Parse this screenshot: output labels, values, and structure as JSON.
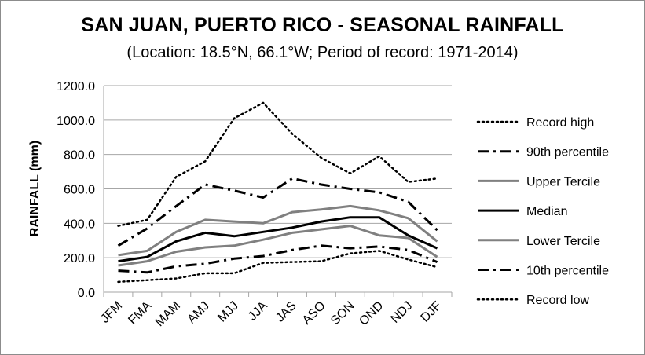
{
  "chart_data": {
    "type": "line",
    "title": "SAN JUAN, PUERTO RICO - SEASONAL RAINFALL",
    "subtitle": "(Location: 18.5°N, 66.1°W; Period of record: 1971-2014)",
    "ylabel": "RAINFALL (mm)",
    "xlabel": "",
    "ylim": [
      0,
      1200
    ],
    "yticks": [
      "0.0",
      "200.0",
      "400.0",
      "600.0",
      "800.0",
      "1000.0",
      "1200.0"
    ],
    "grid": "horizontal",
    "legend": "right",
    "categories": [
      "JFM",
      "FMA",
      "MAM",
      "AMJ",
      "MJJ",
      "JJA",
      "JAS",
      "ASO",
      "SON",
      "OND",
      "NDJ",
      "DJF"
    ],
    "series": [
      {
        "name": "Record high",
        "color": "#000000",
        "style": "dotted",
        "values": [
          385,
          420,
          670,
          760,
          1010,
          1100,
          920,
          780,
          690,
          790,
          640,
          660
        ]
      },
      {
        "name": "90th percentile",
        "color": "#000000",
        "style": "dashdot",
        "values": [
          270,
          370,
          500,
          625,
          590,
          550,
          660,
          625,
          600,
          580,
          525,
          360
        ]
      },
      {
        "name": "Upper Tercile",
        "color": "#808080",
        "style": "solid",
        "values": [
          215,
          240,
          350,
          420,
          410,
          400,
          465,
          480,
          500,
          475,
          430,
          295
        ]
      },
      {
        "name": "Median",
        "color": "#000000",
        "style": "solid",
        "values": [
          180,
          205,
          295,
          345,
          325,
          350,
          375,
          410,
          435,
          435,
          330,
          255
        ]
      },
      {
        "name": "Lower Tercile",
        "color": "#808080",
        "style": "solid",
        "values": [
          155,
          180,
          235,
          260,
          270,
          305,
          345,
          365,
          385,
          330,
          315,
          205
        ]
      },
      {
        "name": "10th percentile",
        "color": "#000000",
        "style": "dashdot",
        "values": [
          125,
          115,
          150,
          165,
          195,
          210,
          245,
          270,
          255,
          265,
          245,
          175
        ]
      },
      {
        "name": "Record low",
        "color": "#000000",
        "style": "dotted",
        "values": [
          60,
          70,
          80,
          110,
          110,
          170,
          175,
          180,
          225,
          240,
          190,
          145
        ]
      }
    ]
  }
}
